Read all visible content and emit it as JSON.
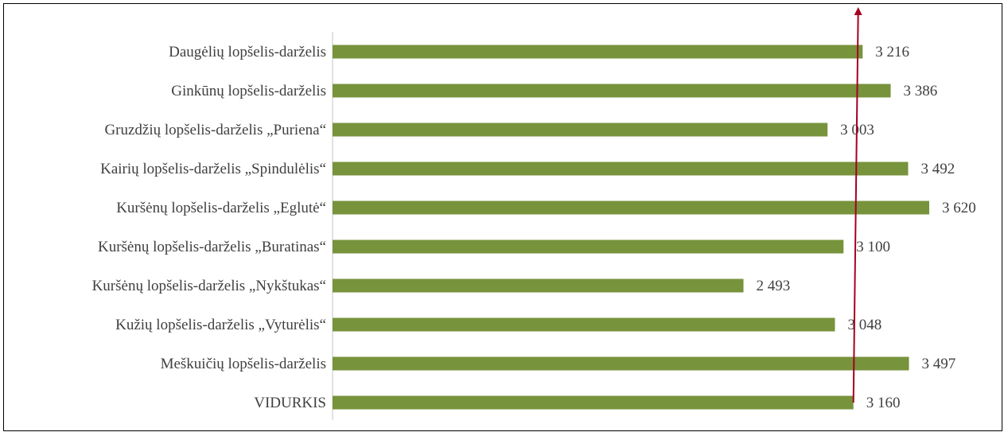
{
  "chart_data": {
    "type": "bar",
    "orientation": "horizontal",
    "categories": [
      "Daugėlių lopšelis-darželis",
      "Ginkūnų lopšelis-darželis",
      "Gruzdžių lopšelis-darželis „Puriena“",
      "Kairių lopšelis-darželis „Spindulėlis“",
      "Kuršėnų lopšelis-darželis „Eglutė“",
      "Kuršėnų lopšelis-darželis „Buratinas“",
      "Kuršėnų lopšelis-darželis „Nykštukas“",
      "Kužių lopšelis-darželis „Vyturėlis“",
      "Meškuičių lopšelis-darželis",
      "VIDURKIS"
    ],
    "values": [
      3216,
      3386,
      3003,
      3492,
      3620,
      3100,
      2493,
      3048,
      3497,
      3160
    ],
    "value_labels": [
      "3 216",
      "3 386",
      "3 003",
      "3 492",
      "3 620",
      "3 100",
      "2 493",
      "3 048",
      "3 497",
      "3 160"
    ],
    "xlim": [
      0,
      3620
    ],
    "grid": false,
    "legend": "none",
    "colors": {
      "bar": "#77933C",
      "arrow": "#A50021",
      "axis": "#D9D9D9",
      "text": "#404040"
    },
    "annotation": {
      "type": "arrow",
      "from_category": "VIDURKIS",
      "from_value": 3160,
      "to": "top"
    }
  }
}
